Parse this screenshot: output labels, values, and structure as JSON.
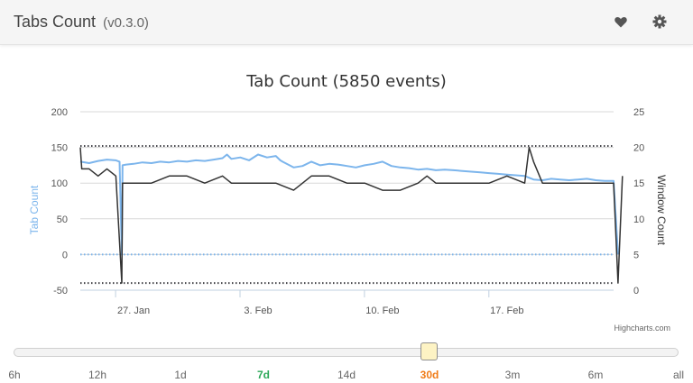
{
  "header": {
    "title": "Tabs Count",
    "version": "(v0.3.0)",
    "icons": {
      "favorite": "heart-icon",
      "settings": "gear-icon"
    }
  },
  "chart_data": {
    "type": "line",
    "title": "Tab Count (5850 events)",
    "credits": "Highcharts.com",
    "x_ticks": [
      "27. Jan",
      "3. Feb",
      "10. Feb",
      "17. Feb"
    ],
    "x_range": [
      "2016-01-24",
      "2016-02-23"
    ],
    "y_left": {
      "label": "Tab Count",
      "ticks": [
        200,
        150,
        100,
        50,
        0,
        -50
      ],
      "range": [
        -50,
        200
      ],
      "color": "#7cb5ec"
    },
    "y_right": {
      "label": "Window Count",
      "ticks": [
        25,
        20,
        15,
        10,
        5,
        0
      ],
      "range": [
        0,
        25
      ],
      "color": "#333333"
    },
    "reference_lines": [
      {
        "axis": "left",
        "value": 152,
        "color": "#434348",
        "style": "dotted"
      },
      {
        "axis": "left",
        "value": 0,
        "color": "#7cb5ec",
        "style": "dotted"
      },
      {
        "axis": "left",
        "value": -40,
        "color": "#434348",
        "style": "dotted"
      }
    ],
    "series": [
      {
        "name": "Tab Count",
        "axis": "left",
        "color": "#7cb5ec",
        "points": [
          [
            "2016-01-24 00:00",
            130
          ],
          [
            "2016-01-24 12:00",
            128
          ],
          [
            "2016-01-25 00:00",
            131
          ],
          [
            "2016-01-25 12:00",
            133
          ],
          [
            "2016-01-26 00:00",
            132
          ],
          [
            "2016-01-26 05:00",
            130
          ],
          [
            "2016-01-26 08:00",
            0
          ],
          [
            "2016-01-26 09:00",
            125
          ],
          [
            "2016-01-26 14:00",
            126
          ],
          [
            "2016-01-27 00:00",
            127
          ],
          [
            "2016-01-27 12:00",
            129
          ],
          [
            "2016-01-28 00:00",
            128
          ],
          [
            "2016-01-28 12:00",
            130
          ],
          [
            "2016-01-29 00:00",
            129
          ],
          [
            "2016-01-29 12:00",
            131
          ],
          [
            "2016-01-30 00:00",
            130
          ],
          [
            "2016-01-30 12:00",
            132
          ],
          [
            "2016-01-31 00:00",
            131
          ],
          [
            "2016-01-31 12:00",
            133
          ],
          [
            "2016-02-01 00:00",
            135
          ],
          [
            "2016-02-01 06:00",
            140
          ],
          [
            "2016-02-01 12:00",
            134
          ],
          [
            "2016-02-02 00:00",
            136
          ],
          [
            "2016-02-02 12:00",
            132
          ],
          [
            "2016-02-03 00:00",
            140
          ],
          [
            "2016-02-03 12:00",
            136
          ],
          [
            "2016-02-04 00:00",
            138
          ],
          [
            "2016-02-04 06:00",
            132
          ],
          [
            "2016-02-04 09:00",
            130
          ],
          [
            "2016-02-05 00:00",
            122
          ],
          [
            "2016-02-05 12:00",
            124
          ],
          [
            "2016-02-06 00:00",
            130
          ],
          [
            "2016-02-06 12:00",
            125
          ],
          [
            "2016-02-07 00:00",
            127
          ],
          [
            "2016-02-07 12:00",
            126
          ],
          [
            "2016-02-08 00:00",
            124
          ],
          [
            "2016-02-08 12:00",
            122
          ],
          [
            "2016-02-09 00:00",
            125
          ],
          [
            "2016-02-09 12:00",
            127
          ],
          [
            "2016-02-10 00:00",
            130
          ],
          [
            "2016-02-10 12:00",
            124
          ],
          [
            "2016-02-11 00:00",
            122
          ],
          [
            "2016-02-11 12:00",
            121
          ],
          [
            "2016-02-12 00:00",
            119
          ],
          [
            "2016-02-12 12:00",
            120
          ],
          [
            "2016-02-13 00:00",
            118
          ],
          [
            "2016-02-13 12:00",
            119
          ],
          [
            "2016-02-14 00:00",
            118
          ],
          [
            "2016-02-14 12:00",
            117
          ],
          [
            "2016-02-15 00:00",
            116
          ],
          [
            "2016-02-15 12:00",
            115
          ],
          [
            "2016-02-16 00:00",
            114
          ],
          [
            "2016-02-16 12:00",
            113
          ],
          [
            "2016-02-17 00:00",
            112
          ],
          [
            "2016-02-17 12:00",
            111
          ],
          [
            "2016-02-18 00:00",
            110
          ],
          [
            "2016-02-18 12:00",
            105
          ],
          [
            "2016-02-19 00:00",
            104
          ],
          [
            "2016-02-19 12:00",
            106
          ],
          [
            "2016-02-20 00:00",
            105
          ],
          [
            "2016-02-20 12:00",
            104
          ],
          [
            "2016-02-21 00:00",
            105
          ],
          [
            "2016-02-21 12:00",
            106
          ],
          [
            "2016-02-22 00:00",
            104
          ],
          [
            "2016-02-22 12:00",
            103
          ],
          [
            "2016-02-23 00:00",
            103
          ],
          [
            "2016-02-23 06:00",
            0
          ]
        ]
      },
      {
        "name": "Window Count",
        "axis": "right",
        "color": "#333333",
        "points": [
          [
            "2016-01-24 00:00",
            20
          ],
          [
            "2016-01-24 02:00",
            17
          ],
          [
            "2016-01-24 12:00",
            17
          ],
          [
            "2016-01-25 00:00",
            16
          ],
          [
            "2016-01-25 12:00",
            17
          ],
          [
            "2016-01-26 00:00",
            16
          ],
          [
            "2016-01-26 08:00",
            1
          ],
          [
            "2016-01-26 09:00",
            15
          ],
          [
            "2016-01-27 00:00",
            15
          ],
          [
            "2016-01-28 00:00",
            15
          ],
          [
            "2016-01-29 00:00",
            16
          ],
          [
            "2016-01-30 00:00",
            16
          ],
          [
            "2016-01-31 00:00",
            15
          ],
          [
            "2016-02-01 00:00",
            16
          ],
          [
            "2016-02-01 12:00",
            15
          ],
          [
            "2016-02-02 00:00",
            15
          ],
          [
            "2016-02-03 00:00",
            15
          ],
          [
            "2016-02-04 00:00",
            15
          ],
          [
            "2016-02-05 00:00",
            14
          ],
          [
            "2016-02-05 12:00",
            15
          ],
          [
            "2016-02-06 00:00",
            16
          ],
          [
            "2016-02-07 00:00",
            16
          ],
          [
            "2016-02-08 00:00",
            15
          ],
          [
            "2016-02-09 00:00",
            15
          ],
          [
            "2016-02-10 00:00",
            14
          ],
          [
            "2016-02-11 00:00",
            14
          ],
          [
            "2016-02-12 00:00",
            15
          ],
          [
            "2016-02-12 12:00",
            16
          ],
          [
            "2016-02-13 00:00",
            15
          ],
          [
            "2016-02-14 00:00",
            15
          ],
          [
            "2016-02-15 00:00",
            15
          ],
          [
            "2016-02-16 00:00",
            15
          ],
          [
            "2016-02-17 00:00",
            16
          ],
          [
            "2016-02-18 00:00",
            15
          ],
          [
            "2016-02-18 06:00",
            20
          ],
          [
            "2016-02-18 12:00",
            18
          ],
          [
            "2016-02-19 00:00",
            15
          ],
          [
            "2016-02-20 00:00",
            15
          ],
          [
            "2016-02-21 00:00",
            15
          ],
          [
            "2016-02-22 00:00",
            15
          ],
          [
            "2016-02-23 00:00",
            15
          ],
          [
            "2016-02-23 06:00",
            1
          ],
          [
            "2016-02-23 12:00",
            16
          ]
        ]
      }
    ]
  },
  "range_selector": {
    "ticks": [
      {
        "label": "6h",
        "state": "normal"
      },
      {
        "label": "12h",
        "state": "normal"
      },
      {
        "label": "1d",
        "state": "normal"
      },
      {
        "label": "7d",
        "state": "green"
      },
      {
        "label": "14d",
        "state": "normal"
      },
      {
        "label": "30d",
        "state": "orange"
      },
      {
        "label": "3m",
        "state": "normal"
      },
      {
        "label": "6m",
        "state": "normal"
      },
      {
        "label": "all",
        "state": "normal"
      }
    ]
  }
}
